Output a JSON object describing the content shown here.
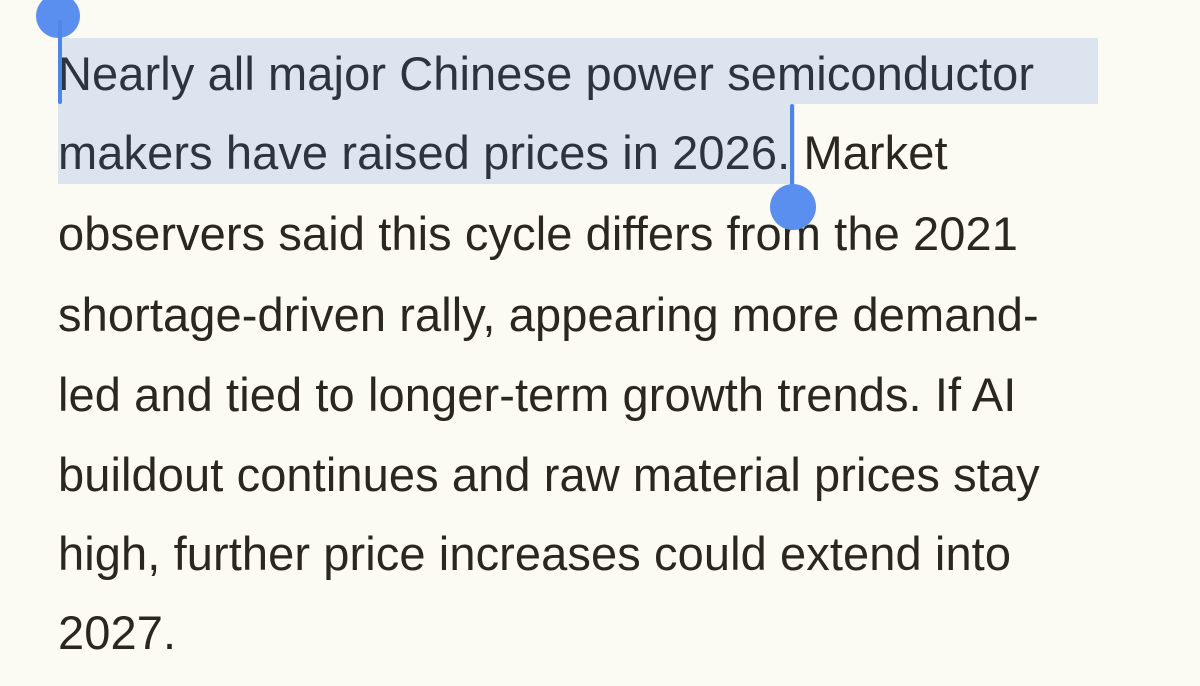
{
  "article": {
    "selected_text": {
      "line1": "Nearly all major Chinese power semiconductor",
      "line2": "makers have raised prices in 2026."
    },
    "lines": {
      "line2_rest": " Market",
      "line3": "observers said this cycle differs from the 2021",
      "line4": "shortage-driven rally, appearing more demand-",
      "line5": "led and tied to longer-term growth trends. If AI",
      "line6": "buildout continues and raw material prices stay",
      "line7": "high, further price increases could extend into",
      "line8": "2027."
    }
  },
  "selection": {
    "highlight_color": "#dbe4ef",
    "handle_color": "#5a8ff0"
  }
}
